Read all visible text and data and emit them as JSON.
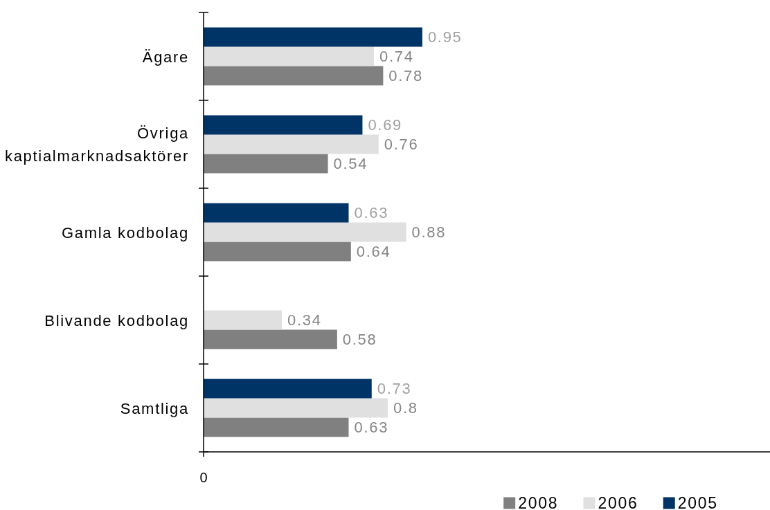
{
  "chart_data": {
    "type": "bar",
    "orientation": "horizontal",
    "categories": [
      "Ägare",
      "Övriga kaptialmarknadsaktörer",
      "Gamla kodbolag",
      "Blivande kodbolag",
      "Samtliga"
    ],
    "series": [
      {
        "name": "2008",
        "color": "#808080",
        "values": [
          0.78,
          0.54,
          0.64,
          0.58,
          0.63
        ]
      },
      {
        "name": "2006",
        "color": "#e0e0e0",
        "values": [
          0.74,
          0.76,
          0.88,
          0.34,
          0.8
        ]
      },
      {
        "name": "2005",
        "color": "#003366",
        "values": [
          0.95,
          0.69,
          0.63,
          null,
          0.73
        ]
      }
    ],
    "xlim": [
      0,
      2.46
    ],
    "annotations": [
      "0"
    ],
    "data_labels": true,
    "legend": "bottom right"
  }
}
